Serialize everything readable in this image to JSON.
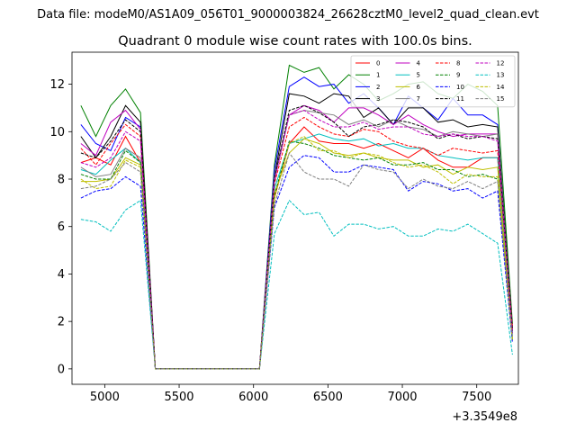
{
  "header_text": "Data file: modeM0/AS1A09_056T01_9000003824_26628cztM0_level2_quad_clean.evt",
  "chart_data": {
    "type": "line",
    "title": "Quadrant 0 module wise count rates with 100.0s bins.",
    "xlabel": "",
    "ylabel": "",
    "x_offset_label": "+3.3549e8",
    "xlim": [
      4780,
      7780
    ],
    "ylim": [
      -0.65,
      13.35
    ],
    "x_ticks": [
      5000,
      5500,
      6000,
      6500,
      7000,
      7500
    ],
    "y_ticks": [
      0,
      2,
      4,
      6,
      8,
      10,
      12
    ],
    "legend_position": "upper right",
    "x": [
      4840,
      4940,
      5040,
      5140,
      5240,
      5340,
      5440,
      5540,
      5640,
      5740,
      5840,
      5940,
      6040,
      6140,
      6240,
      6340,
      6440,
      6540,
      6640,
      6740,
      6840,
      6940,
      7040,
      7140,
      7240,
      7340,
      7440,
      7540,
      7640,
      7740
    ],
    "series": [
      {
        "name": "0",
        "color": "#ff0000",
        "dash": "solid",
        "values": [
          8.7,
          8.9,
          8.6,
          9.8,
          8.7,
          0.0,
          0.0,
          0.0,
          0.0,
          0.0,
          0.0,
          0.0,
          0.0,
          7.2,
          9.5,
          10.2,
          9.6,
          9.5,
          9.5,
          9.3,
          9.5,
          9.2,
          8.9,
          9.3,
          8.8,
          8.5,
          8.5,
          8.9,
          8.9,
          1.8
        ]
      },
      {
        "name": "1",
        "color": "#008000",
        "dash": "solid",
        "values": [
          11.1,
          9.8,
          11.1,
          11.8,
          10.8,
          0.0,
          0.0,
          0.0,
          0.0,
          0.0,
          0.0,
          0.0,
          0.0,
          8.6,
          12.8,
          12.5,
          12.7,
          11.8,
          12.4,
          12.0,
          11.3,
          11.6,
          12.0,
          12.1,
          11.6,
          11.4,
          12.0,
          11.7,
          11.1,
          1.9
        ]
      },
      {
        "name": "2",
        "color": "#0000ff",
        "dash": "solid",
        "values": [
          10.3,
          9.5,
          9.2,
          10.6,
          10.2,
          0.0,
          0.0,
          0.0,
          0.0,
          0.0,
          0.0,
          0.0,
          0.0,
          8.4,
          11.9,
          12.3,
          11.9,
          12.0,
          11.2,
          11.6,
          11.0,
          10.3,
          11.5,
          11.0,
          10.5,
          11.4,
          10.7,
          10.7,
          10.3,
          1.5
        ]
      },
      {
        "name": "3",
        "color": "#000000",
        "dash": "solid",
        "values": [
          9.8,
          8.9,
          9.8,
          11.1,
          10.4,
          0.0,
          0.0,
          0.0,
          0.0,
          0.0,
          0.0,
          0.0,
          0.0,
          8.1,
          11.6,
          11.5,
          11.2,
          11.6,
          11.5,
          10.6,
          11.0,
          10.3,
          11.0,
          11.0,
          10.4,
          10.5,
          10.2,
          10.3,
          10.2,
          1.7
        ]
      },
      {
        "name": "4",
        "color": "#bf00bf",
        "dash": "solid",
        "values": [
          9.5,
          9.0,
          10.4,
          10.9,
          10.1,
          0.0,
          0.0,
          0.0,
          0.0,
          0.0,
          0.0,
          0.0,
          0.0,
          8.0,
          10.7,
          11.1,
          10.9,
          10.4,
          11.0,
          11.0,
          10.7,
          10.3,
          10.7,
          10.3,
          10.0,
          9.8,
          9.9,
          9.9,
          9.9,
          1.6
        ]
      },
      {
        "name": "5",
        "color": "#00bfbf",
        "dash": "solid",
        "values": [
          8.4,
          8.2,
          8.8,
          9.3,
          8.7,
          0.0,
          0.0,
          0.0,
          0.0,
          0.0,
          0.0,
          0.0,
          0.0,
          7.6,
          9.5,
          9.7,
          9.9,
          9.7,
          9.6,
          9.7,
          9.4,
          9.5,
          9.3,
          9.3,
          9.0,
          8.9,
          8.8,
          8.9,
          8.9,
          1.4
        ]
      },
      {
        "name": "6",
        "color": "#bfbf00",
        "dash": "solid",
        "values": [
          7.9,
          7.9,
          8.0,
          8.9,
          8.6,
          0.0,
          0.0,
          0.0,
          0.0,
          0.0,
          0.0,
          0.0,
          0.0,
          7.4,
          9.1,
          9.7,
          9.5,
          9.1,
          9.0,
          9.1,
          8.9,
          8.8,
          8.8,
          8.5,
          8.6,
          8.2,
          8.5,
          8.4,
          8.5,
          1.3
        ]
      },
      {
        "name": "7",
        "color": "#7f7f7f",
        "dash": "solid",
        "values": [
          8.5,
          8.1,
          8.2,
          9.3,
          8.9,
          0.0,
          0.0,
          0.0,
          0.0,
          0.0,
          0.0,
          0.0,
          0.0,
          8.1,
          10.7,
          10.9,
          10.8,
          10.7,
          10.3,
          10.5,
          10.2,
          10.5,
          10.2,
          10.1,
          9.8,
          10.0,
          9.9,
          9.8,
          9.9,
          1.6
        ]
      },
      {
        "name": "8",
        "color": "#ff0000",
        "dash": "dashed",
        "values": [
          9.3,
          8.6,
          9.5,
          10.3,
          9.8,
          0.0,
          0.0,
          0.0,
          0.0,
          0.0,
          0.0,
          0.0,
          0.0,
          7.8,
          10.2,
          10.6,
          10.2,
          9.9,
          9.8,
          10.1,
          10.0,
          9.6,
          9.4,
          9.3,
          9.0,
          9.3,
          9.2,
          9.1,
          9.2,
          1.7
        ]
      },
      {
        "name": "9",
        "color": "#008000",
        "dash": "dashed",
        "values": [
          8.2,
          8.0,
          8.0,
          9.2,
          8.7,
          0.0,
          0.0,
          0.0,
          0.0,
          0.0,
          0.0,
          0.0,
          0.0,
          7.3,
          9.6,
          9.5,
          9.3,
          9.0,
          8.9,
          8.8,
          8.9,
          8.6,
          8.6,
          8.7,
          8.4,
          8.4,
          8.1,
          8.2,
          8.0,
          1.2
        ]
      },
      {
        "name": "10",
        "color": "#0000ff",
        "dash": "dashed",
        "values": [
          7.2,
          7.5,
          7.6,
          8.1,
          7.7,
          0.0,
          0.0,
          0.0,
          0.0,
          0.0,
          0.0,
          0.0,
          0.0,
          6.8,
          8.5,
          9.0,
          8.9,
          8.3,
          8.3,
          8.6,
          8.5,
          8.4,
          7.5,
          7.9,
          7.8,
          7.5,
          7.6,
          7.2,
          7.5,
          1.1
        ]
      },
      {
        "name": "11",
        "color": "#000000",
        "dash": "dashed",
        "values": [
          9.1,
          8.9,
          9.6,
          10.5,
          10.0,
          0.0,
          0.0,
          0.0,
          0.0,
          0.0,
          0.0,
          0.0,
          0.0,
          8.0,
          10.9,
          11.1,
          10.8,
          10.4,
          9.8,
          10.2,
          10.3,
          10.5,
          10.4,
          10.2,
          9.7,
          9.9,
          9.7,
          9.8,
          9.7,
          1.6
        ]
      },
      {
        "name": "12",
        "color": "#bf00bf",
        "dash": "dashed",
        "values": [
          8.7,
          8.5,
          8.9,
          10.0,
          9.6,
          0.0,
          0.0,
          0.0,
          0.0,
          0.0,
          0.0,
          0.0,
          0.0,
          7.9,
          10.7,
          10.9,
          10.5,
          10.2,
          10.2,
          10.4,
          10.1,
          10.2,
          10.2,
          9.9,
          9.8,
          9.9,
          9.8,
          9.8,
          9.6,
          1.5
        ]
      },
      {
        "name": "13",
        "color": "#00bfbf",
        "dash": "dashed",
        "values": [
          6.3,
          6.2,
          5.8,
          6.7,
          7.1,
          0.0,
          0.0,
          0.0,
          0.0,
          0.0,
          0.0,
          0.0,
          0.0,
          5.7,
          7.1,
          6.5,
          6.6,
          5.6,
          6.1,
          6.1,
          5.9,
          6.0,
          5.6,
          5.6,
          5.9,
          5.8,
          6.1,
          5.7,
          5.3,
          0.6
        ]
      },
      {
        "name": "14",
        "color": "#bfbf00",
        "dash": "dashed",
        "values": [
          8.0,
          7.6,
          7.7,
          8.8,
          8.5,
          0.0,
          0.0,
          0.0,
          0.0,
          0.0,
          0.0,
          0.0,
          0.0,
          7.2,
          9.5,
          9.8,
          9.2,
          9.2,
          8.9,
          9.1,
          9.0,
          8.7,
          8.5,
          8.6,
          8.3,
          7.8,
          8.2,
          8.1,
          8.1,
          1.2
        ]
      },
      {
        "name": "15",
        "color": "#7f7f7f",
        "dash": "dashed",
        "values": [
          7.6,
          7.7,
          8.0,
          8.7,
          8.3,
          0.0,
          0.0,
          0.0,
          0.0,
          0.0,
          0.0,
          0.0,
          0.0,
          6.9,
          9.1,
          8.3,
          8.0,
          8.0,
          7.7,
          8.6,
          8.4,
          8.3,
          7.6,
          8.0,
          7.7,
          7.6,
          7.9,
          7.6,
          7.9,
          1.3
        ]
      }
    ]
  }
}
